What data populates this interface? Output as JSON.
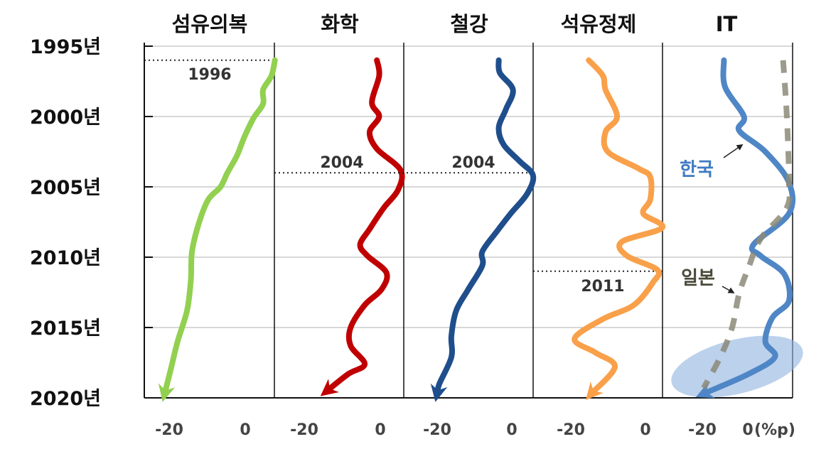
{
  "chart_data": {
    "type": "line",
    "y_axis": {
      "ticks": [
        1995,
        2000,
        2005,
        2010,
        2015,
        2020
      ],
      "tick_labels": [
        "1995년",
        "2000년",
        "2005년",
        "2010년",
        "2015년",
        "2020년"
      ],
      "range": [
        1995,
        2020
      ],
      "direction": "top-to-bottom"
    },
    "grid": true,
    "unit_label": "(%p)",
    "panels": [
      {
        "title": "섬유의복",
        "x_ticks": [
          -20,
          0
        ],
        "x_tick_labels": [
          "-20",
          "0"
        ],
        "annotation": {
          "year": 1996,
          "label": "1996"
        },
        "series": [
          {
            "color": "#92d050",
            "style": "solid",
            "arrow": true,
            "points": [
              [
                1996.0,
                7.8
              ],
              [
                1997.1,
                6.9
              ],
              [
                1998.1,
                4.7
              ],
              [
                1999.1,
                4.7
              ],
              [
                2000.1,
                2.2
              ],
              [
                2001.5,
                -0.3
              ],
              [
                2002.8,
                -2.2
              ],
              [
                2004.0,
                -4.7
              ],
              [
                2005.0,
                -6.5
              ],
              [
                2005.9,
                -9.7
              ],
              [
                2007.5,
                -12.1
              ],
              [
                2009.6,
                -14.0
              ],
              [
                2011.6,
                -14.3
              ],
              [
                2013.8,
                -15.3
              ],
              [
                2016.0,
                -17.8
              ],
              [
                2018.0,
                -19.6
              ],
              [
                2019.7,
                -21.2
              ]
            ]
          }
        ]
      },
      {
        "title": "화학",
        "x_ticks": [
          -20,
          0
        ],
        "x_tick_labels": [
          "-20",
          "0"
        ],
        "annotation": {
          "year": 2004,
          "label": "2004"
        },
        "series": [
          {
            "color": "#c00000",
            "style": "solid",
            "arrow": true,
            "points": [
              [
                1996.0,
                -0.9
              ],
              [
                1997.1,
                -0.3
              ],
              [
                1999.0,
                -2.2
              ],
              [
                2000.0,
                -0.3
              ],
              [
                2001.1,
                -2.8
              ],
              [
                2002.3,
                -0.9
              ],
              [
                2003.8,
                5.3
              ],
              [
                2005.2,
                4.7
              ],
              [
                2006.5,
                0.9
              ],
              [
                2008.0,
                -2.8
              ],
              [
                2009.1,
                -5.3
              ],
              [
                2009.9,
                -3.4
              ],
              [
                2011.1,
                1.6
              ],
              [
                2012.3,
                0.3
              ],
              [
                2013.4,
                -4.1
              ],
              [
                2015.0,
                -7.8
              ],
              [
                2016.3,
                -7.8
              ],
              [
                2017.6,
                -4.1
              ],
              [
                2018.3,
                -8.4
              ],
              [
                2019.5,
                -14.0
              ]
            ]
          }
        ]
      },
      {
        "title": "철강",
        "x_ticks": [
          -20,
          0
        ],
        "x_tick_labels": [
          "-20",
          "0"
        ],
        "annotation": {
          "year": 2004,
          "label": "2004"
        },
        "series": [
          {
            "color": "#1f4e8c",
            "style": "solid",
            "arrow": true,
            "points": [
              [
                1996.0,
                -3.5
              ],
              [
                1996.9,
                -3.2
              ],
              [
                1998.1,
                0.3
              ],
              [
                1999.5,
                -1.6
              ],
              [
                2000.8,
                -3.5
              ],
              [
                2002.0,
                -2.2
              ],
              [
                2003.2,
                2.2
              ],
              [
                2004.2,
                5.7
              ],
              [
                2005.5,
                4.1
              ],
              [
                2006.9,
                -0.3
              ],
              [
                2008.2,
                -4.1
              ],
              [
                2009.6,
                -7.9
              ],
              [
                2010.6,
                -7.9
              ],
              [
                2012.3,
                -11.7
              ],
              [
                2013.8,
                -14.9
              ],
              [
                2015.6,
                -16.2
              ],
              [
                2017.1,
                -16.2
              ],
              [
                2019.0,
                -19.4
              ],
              [
                2019.7,
                -20.0
              ]
            ]
          }
        ]
      },
      {
        "title": "석유정제",
        "x_ticks": [
          -20,
          0
        ],
        "x_tick_labels": [
          "-20",
          "0"
        ],
        "annotation": {
          "year": 2011,
          "label": "2011"
        },
        "series": [
          {
            "color": "#f9a04a",
            "style": "solid",
            "arrow": true,
            "points": [
              [
                1996.0,
                -15.2
              ],
              [
                1997.1,
                -11.4
              ],
              [
                1998.1,
                -10.7
              ],
              [
                2000.0,
                -7.6
              ],
              [
                2001.1,
                -10.7
              ],
              [
                2002.5,
                -10.1
              ],
              [
                2003.7,
                -1.8
              ],
              [
                2004.3,
                1.3
              ],
              [
                2005.9,
                1.3
              ],
              [
                2006.9,
                -0.6
              ],
              [
                2007.9,
                4.5
              ],
              [
                2008.9,
                -6.3
              ],
              [
                2009.9,
                -5.0
              ],
              [
                2010.9,
                3.2
              ],
              [
                2011.8,
                2.0
              ],
              [
                2013.4,
                -3.1
              ],
              [
                2014.4,
                -11.4
              ],
              [
                2015.8,
                -19.0
              ],
              [
                2016.8,
                -13.3
              ],
              [
                2017.8,
                -8.2
              ],
              [
                2019.7,
                -14.5
              ]
            ]
          }
        ]
      },
      {
        "title": "IT",
        "x_ticks": [
          -20,
          0
        ],
        "x_tick_labels": [
          "-20",
          "0"
        ],
        "highlight": "2020 end-point circled",
        "series": [
          {
            "name": "한국",
            "color": "#4f86c6",
            "style": "solid",
            "arrow": true,
            "points": [
              [
                1996.0,
                -10.5
              ],
              [
                1997.9,
                -10.0
              ],
              [
                2000.0,
                -1.7
              ],
              [
                2001.0,
                -3.8
              ],
              [
                2002.5,
                7.7
              ],
              [
                2004.7,
                18.1
              ],
              [
                2006.9,
                18.1
              ],
              [
                2009.1,
                2.5
              ],
              [
                2009.9,
                5.6
              ],
              [
                2011.2,
                16.0
              ],
              [
                2013.1,
                18.1
              ],
              [
                2014.3,
                10.8
              ],
              [
                2016.0,
                7.7
              ],
              [
                2017.1,
                11.9
              ],
              [
                2018.3,
                0.4
              ],
              [
                2019.7,
                -19.4
              ]
            ]
          },
          {
            "name": "일본",
            "color": "#8c8a78",
            "style": "dashed",
            "arrow": false,
            "points": [
              [
                1996.0,
                15.5
              ],
              [
                1999.8,
                17.1
              ],
              [
                2004.5,
                18.1
              ],
              [
                2006.5,
                17.1
              ],
              [
                2008.7,
                5.6
              ],
              [
                2010.7,
                0.4
              ],
              [
                2012.6,
                -3.8
              ],
              [
                2015.0,
                -6.9
              ],
              [
                2017.1,
                -12.1
              ],
              [
                2019.3,
                -19.4
              ]
            ]
          }
        ]
      }
    ]
  }
}
